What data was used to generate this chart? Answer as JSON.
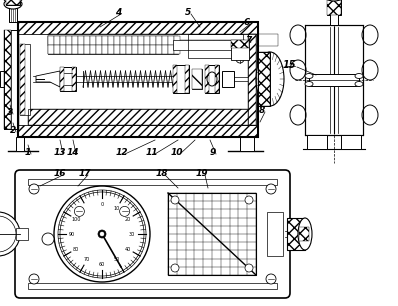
{
  "bg_color": "#ffffff",
  "line_color": "#000000",
  "fig_width": 3.98,
  "fig_height": 3.06,
  "dpi": 100
}
